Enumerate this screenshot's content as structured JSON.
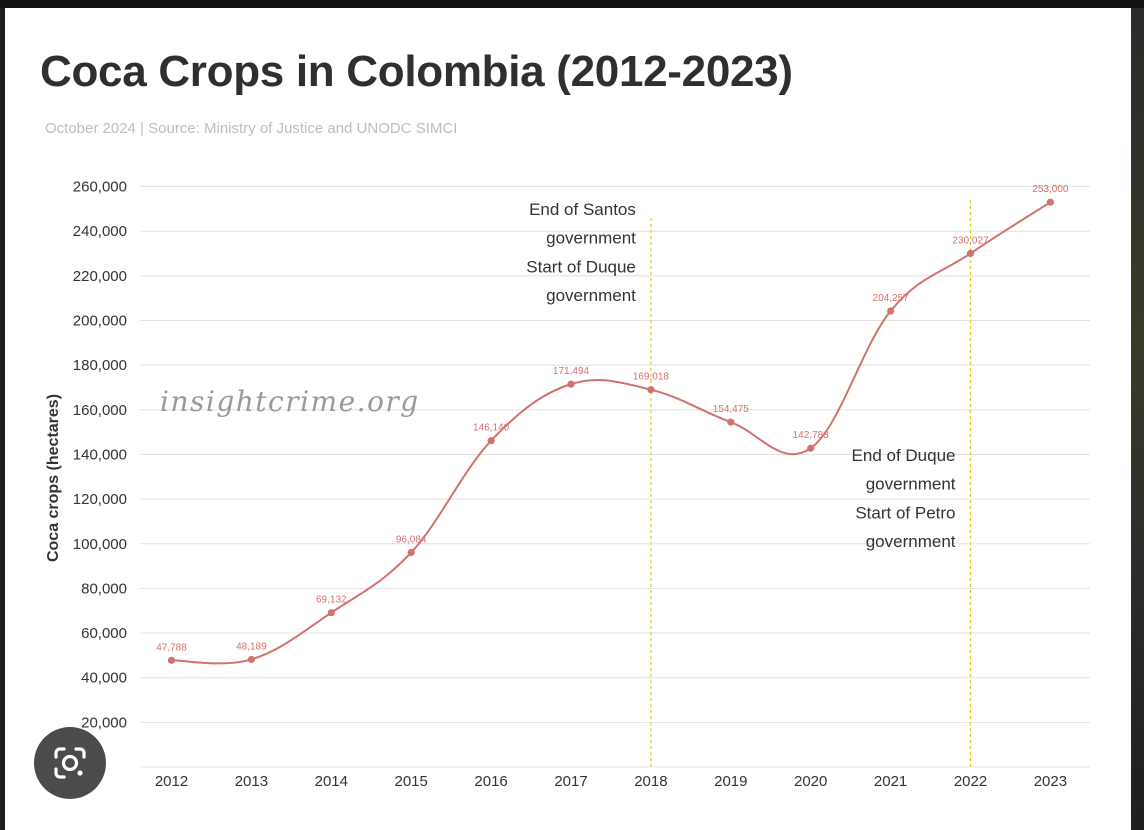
{
  "title": "Coca Crops in Colombia (2012-2023)",
  "subtitle": "October 2024 | Source: Ministry of Justice and UNODC SIMCI",
  "watermark": "insightcrime.org",
  "colors": {
    "line": "#d2726f",
    "point": "#d2726f",
    "label": "#d2726f",
    "vline": "#d8cc3a",
    "grid": "#e2e2e2",
    "text": "#333333"
  },
  "lens_icon": "google-lens-icon",
  "chart_data": {
    "type": "line",
    "title": "Coca Crops in Colombia (2012-2023)",
    "xlabel": "",
    "ylabel": "Coca crops (hectares)",
    "ylim": [
      0,
      260000
    ],
    "yticks": [
      "20,000",
      "40,000",
      "60,000",
      "80,000",
      "100,000",
      "120,000",
      "140,000",
      "160,000",
      "180,000",
      "200,000",
      "220,000",
      "240,000",
      "260,000"
    ],
    "ytick_values": [
      20000,
      40000,
      60000,
      80000,
      100000,
      120000,
      140000,
      160000,
      180000,
      200000,
      220000,
      240000,
      260000
    ],
    "categories": [
      "2012",
      "2013",
      "2014",
      "2015",
      "2016",
      "2017",
      "2018",
      "2019",
      "2020",
      "2021",
      "2022",
      "2023"
    ],
    "values": [
      47788,
      48189,
      69132,
      96084,
      146140,
      171494,
      169018,
      154475,
      142783,
      204257,
      230027,
      253000
    ],
    "value_labels": [
      "47,788",
      "48,189",
      "69,132",
      "96,084",
      "146,140",
      "171,494",
      "169,018",
      "154,475",
      "142,783",
      "204,257",
      "230,027",
      "253,000"
    ],
    "grid": true,
    "annotations": [
      {
        "x": "2018",
        "lines": [
          "End of Santos",
          "government",
          "Start of Duque",
          "government"
        ]
      },
      {
        "x": "2022",
        "lines": [
          "End of Duque",
          "government",
          "Start of Petro",
          "government"
        ]
      }
    ]
  }
}
